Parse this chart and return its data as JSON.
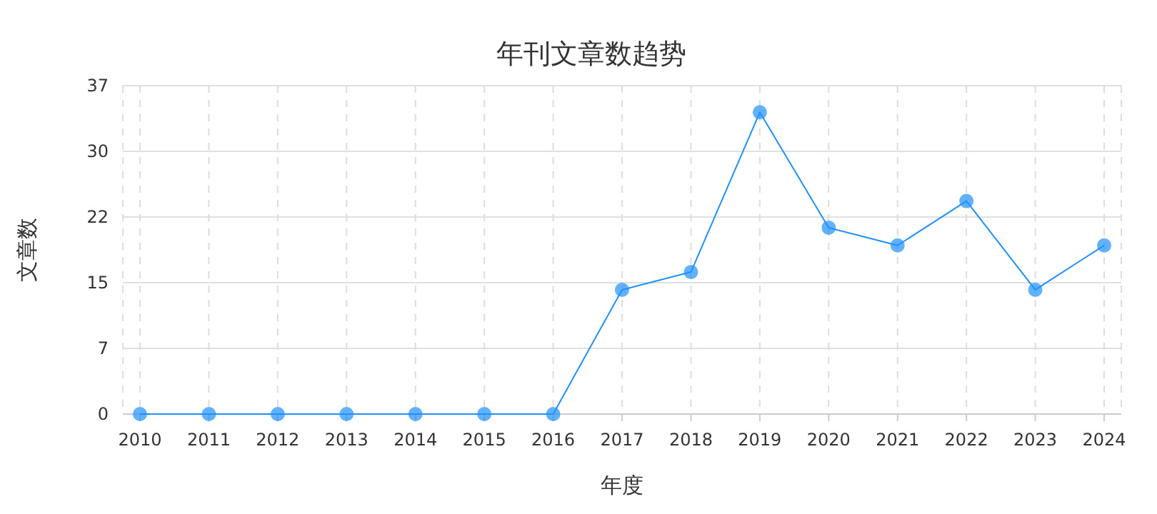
{
  "chart_data": {
    "type": "line",
    "title": "年刊文章数趋势",
    "xlabel": "年度",
    "ylabel": "文章数",
    "categories": [
      "2010",
      "2011",
      "2012",
      "2013",
      "2014",
      "2015",
      "2016",
      "2017",
      "2018",
      "2019",
      "2020",
      "2021",
      "2022",
      "2023",
      "2024"
    ],
    "values": [
      0,
      0,
      0,
      0,
      0,
      0,
      0,
      14,
      16,
      34,
      21,
      19,
      24,
      14,
      19
    ],
    "color": "#1e90ff",
    "ylim": [
      0,
      37
    ],
    "yticks": [
      0,
      {
        "value": 7.4,
        "label": "7"
      },
      {
        "value": 14.8,
        "label": "15"
      },
      {
        "value": 22.2,
        "label": "22"
      },
      {
        "value": 29.6,
        "label": "30"
      },
      37
    ],
    "grid": true,
    "marker": "circle",
    "line_style": "solid"
  }
}
